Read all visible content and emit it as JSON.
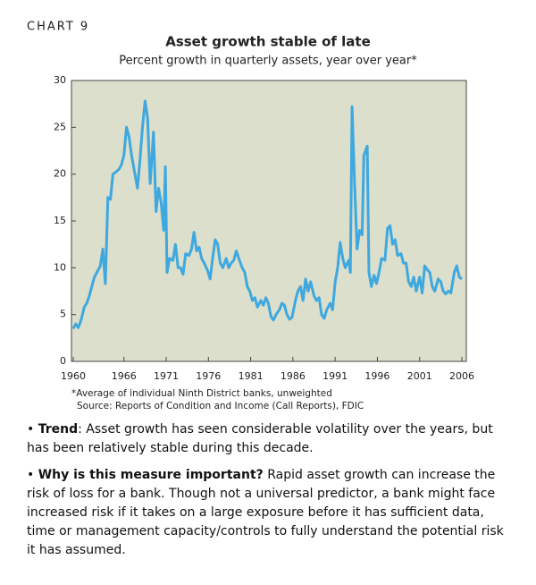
{
  "chart_data": {
    "type": "line",
    "label": "CHART 9",
    "title": "Asset growth stable of late",
    "subtitle": "Percent growth in quarterly assets, year over year*",
    "xlim": [
      1960,
      2006
    ],
    "xticks": [
      1960,
      1966,
      1971,
      1976,
      1981,
      1986,
      1991,
      1996,
      2001,
      2006
    ],
    "ylim": [
      0,
      30
    ],
    "yticks": [
      0,
      5,
      10,
      15,
      20,
      25,
      30
    ],
    "grid": false,
    "series": [
      {
        "color": "#3ea8df",
        "x": [
          1960.0,
          1960.3,
          1960.6,
          1960.95,
          1961.3,
          1961.6,
          1961.9,
          1962.2,
          1962.5,
          1962.8,
          1963.2,
          1963.5,
          1963.8,
          1964.1,
          1964.4,
          1964.7,
          1965.0,
          1965.4,
          1965.7,
          1966.0,
          1966.3,
          1966.6,
          1966.9,
          1967.2,
          1967.6,
          1967.9,
          1968.2,
          1968.5,
          1968.8,
          1969.1,
          1969.5,
          1969.8,
          1970.1,
          1970.4,
          1970.7,
          1970.9,
          1971.1,
          1971.4,
          1971.8,
          1972.1,
          1972.4,
          1972.7,
          1973.0,
          1973.3,
          1973.7,
          1974.0,
          1974.3,
          1974.6,
          1974.9,
          1975.2,
          1975.5,
          1975.9,
          1976.2,
          1976.5,
          1976.8,
          1977.1,
          1977.4,
          1977.7,
          1978.1,
          1978.4,
          1978.7,
          1979.0,
          1979.3,
          1979.6,
          1980.0,
          1980.3,
          1980.6,
          1980.9,
          1981.2,
          1981.5,
          1981.8,
          1982.2,
          1982.5,
          1982.8,
          1983.1,
          1983.4,
          1983.7,
          1984.0,
          1984.4,
          1984.7,
          1985.0,
          1985.3,
          1985.6,
          1985.9,
          1986.3,
          1986.6,
          1986.9,
          1987.2,
          1987.5,
          1987.8,
          1988.1,
          1988.5,
          1988.8,
          1989.1,
          1989.4,
          1989.7,
          1990.0,
          1990.4,
          1990.7,
          1991.0,
          1991.3,
          1991.6,
          1991.9,
          1992.2,
          1992.6,
          1992.8,
          1993.0,
          1993.3,
          1993.6,
          1993.9,
          1994.2,
          1994.4,
          1994.8,
          1995.0,
          1995.3,
          1995.6,
          1995.9,
          1996.2,
          1996.5,
          1996.9,
          1997.2,
          1997.5,
          1997.8,
          1998.1,
          1998.4,
          1998.8,
          1999.1,
          1999.4,
          1999.7,
          2000.0,
          2000.3,
          2000.6,
          2001.0,
          2001.3,
          2001.6,
          2001.9,
          2002.2,
          2002.5,
          2002.8,
          2003.2,
          2003.5,
          2003.8,
          2004.1,
          2004.4,
          2004.7,
          2005.1,
          2005.4,
          2005.7,
          2006.0
        ],
        "values": [
          3.5,
          4.0,
          3.6,
          4.5,
          5.8,
          6.2,
          7.0,
          8.0,
          9.0,
          9.5,
          10.2,
          12.0,
          8.3,
          17.5,
          17.3,
          20.0,
          20.2,
          20.5,
          21.0,
          22.0,
          25.0,
          24.0,
          22.0,
          20.5,
          18.5,
          21.5,
          25.0,
          27.8,
          26.0,
          19.0,
          24.5,
          16.0,
          18.5,
          17.0,
          14.0,
          20.8,
          9.5,
          11.0,
          10.8,
          12.5,
          10.0,
          10.0,
          9.3,
          11.5,
          11.3,
          12.0,
          13.8,
          11.8,
          12.2,
          11.0,
          10.5,
          9.7,
          8.8,
          11.0,
          13.0,
          12.5,
          10.5,
          10.0,
          11.0,
          10.0,
          10.5,
          10.8,
          11.8,
          11.0,
          10.0,
          9.5,
          8.0,
          7.5,
          6.5,
          6.8,
          5.8,
          6.5,
          6.0,
          6.8,
          6.2,
          4.8,
          4.4,
          5.0,
          5.5,
          6.2,
          6.0,
          5.0,
          4.5,
          4.7,
          6.5,
          7.5,
          8.0,
          6.5,
          8.8,
          7.5,
          8.5,
          7.0,
          6.5,
          6.8,
          5.0,
          4.6,
          5.5,
          6.2,
          5.5,
          8.5,
          10.0,
          12.7,
          11.0,
          10.0,
          10.8,
          9.5,
          27.2,
          19.0,
          12.0,
          14.0,
          13.5,
          22.0,
          23.0,
          9.5,
          8.0,
          9.2,
          8.3,
          9.5,
          11.0,
          10.8,
          14.2,
          14.5,
          12.5,
          13.0,
          11.3,
          11.5,
          10.5,
          10.5,
          8.5,
          8.0,
          9.0,
          7.5,
          9.0,
          7.3,
          10.2,
          9.8,
          9.5,
          8.0,
          7.5,
          8.8,
          8.5,
          7.5,
          7.2,
          7.5,
          7.3,
          9.5,
          10.2,
          9.0,
          8.8
        ]
      }
    ],
    "notes": [
      "*Average of individual Ninth District banks, unweighted",
      "Source: Reports of Condition and Income (Call Reports), FDIC"
    ]
  },
  "bullets": [
    {
      "label": "Trend",
      "text": ": Asset growth has seen considerable volatility over the years, but has been relatively stable during this decade."
    },
    {
      "label": "Why is this measure important?",
      "text": " Rapid asset growth can increase the risk of loss for a bank. Though not a universal predictor, a bank might face increased risk if it takes on a large exposure before it has sufficient data, time or management capacity/controls to fully understand the potential risk it has assumed."
    }
  ]
}
